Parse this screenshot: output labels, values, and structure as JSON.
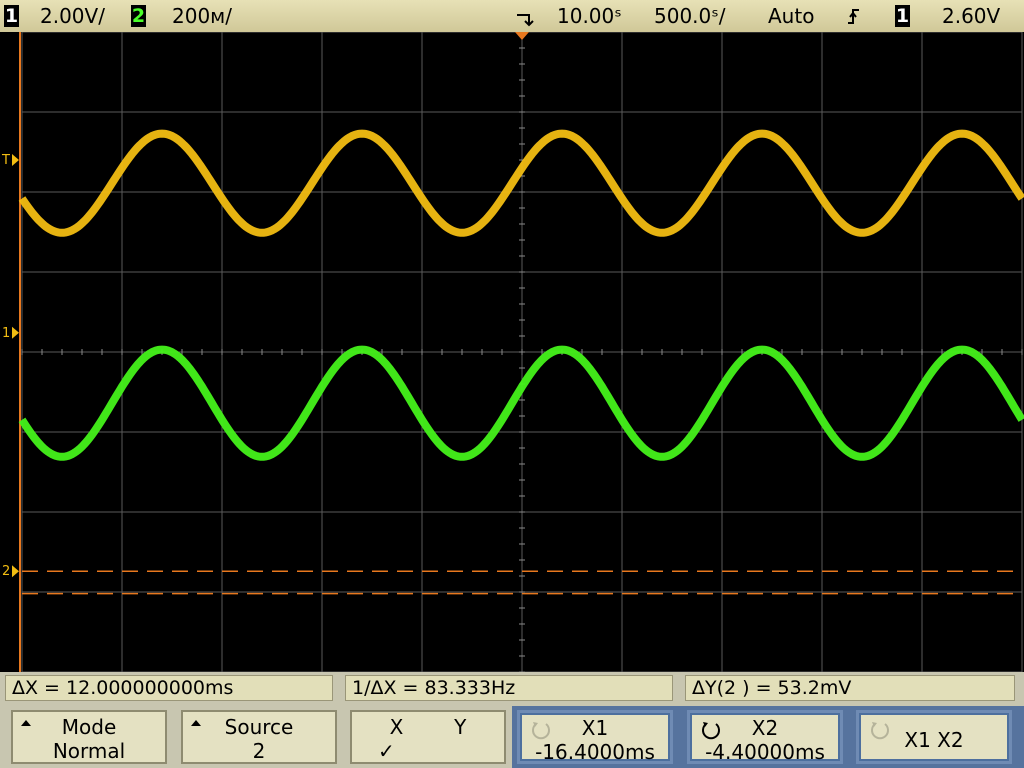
{
  "header": {
    "ch1_badge": "1",
    "ch1_scale": "2.00V/",
    "ch2_badge": "2",
    "ch2_scale": "200ᴍ/",
    "time_ref": "10.00s",
    "time_ref_display": "10.00ˢ",
    "time_scale": "500.0ˢ/",
    "trigger_mode": "Auto",
    "trigger_slope_icon": "rising-edge-icon",
    "trigger_source_badge": "1",
    "trigger_level": "2.60V"
  },
  "markers": {
    "trigger_marker": "T",
    "ch1_ground": "1",
    "ch2_ground": "2"
  },
  "measurements": {
    "delta_x": "ΔX = 12.000000000ms",
    "inv_delta_x": "1/ΔX = 83.333Hz",
    "delta_y": "ΔY(2 ) = 53.2mV"
  },
  "softkeys": [
    {
      "line1": "Mode",
      "line2": "Normal"
    },
    {
      "line1": "Source",
      "line2": "2"
    },
    {
      "line1": "X        Y",
      "line2": "✓"
    },
    {
      "line1": "X1",
      "line2": "-16.4000ms"
    },
    {
      "line1": "X2",
      "line2": "-4.40000ms"
    },
    {
      "line1": "X1  X2",
      "line2": ""
    }
  ],
  "colors": {
    "ch1": "#f2bd12",
    "ch2": "#44f21a",
    "cursor": "#e8781e",
    "grid": "#5a5a5a",
    "ground_marker": "#f2bd12"
  },
  "chart_data": {
    "type": "line",
    "title": "",
    "xlabel": "",
    "ylabel": "",
    "grid": true,
    "divisions": {
      "x": 10,
      "y": 8
    },
    "xlim_div": [
      0,
      10
    ],
    "ylim_div": [
      -4,
      4
    ],
    "series": [
      {
        "name": "1",
        "period_div": 2.0,
        "center_div": 2.11,
        "amplitude_div": 0.62,
        "peak_phase_div": 1.4
      },
      {
        "name": "2",
        "period_div": 2.0,
        "center_div": -0.64,
        "amplitude_div": 0.67,
        "peak_phase_div": 1.4
      }
    ],
    "cursors_div": {
      "y1": -2.74,
      "y2": -3.02
    }
  }
}
